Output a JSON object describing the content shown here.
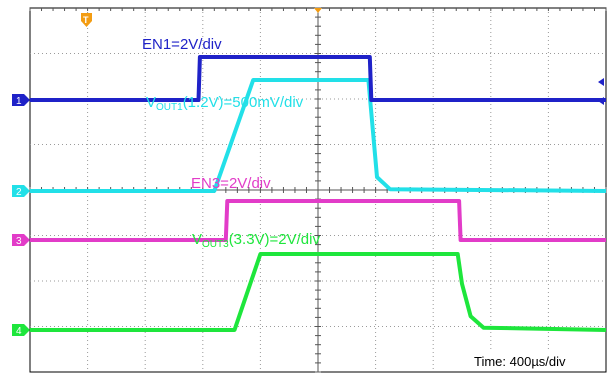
{
  "chart_data": {
    "type": "line",
    "title": "",
    "x_unit": "µs",
    "time_label": "Time: 400µs/div",
    "grid": true,
    "x_divisions": 10,
    "y_divisions": 8,
    "x_range_us": [
      -1200,
      2800
    ],
    "marker_labels": {
      "trigger": "T",
      "ch1": "1",
      "ch2": "2",
      "ch3": "3",
      "ch4": "4"
    },
    "series": [
      {
        "name": "EN1",
        "label": "EN1=2V/div",
        "color": "#1f22c8",
        "x": [
          -1200,
          -30,
          -20,
          1160,
          1170,
          2800
        ],
        "y": [
          0,
          0,
          3.3,
          3.3,
          0,
          0
        ]
      },
      {
        "name": "VOUT1",
        "label_main": "V",
        "label_sub": "OUT1",
        "label_rest": "(1.2V)=500mV/div",
        "color": "#22e0e8",
        "x": [
          -1200,
          80,
          350,
          1150,
          1210,
          1300,
          2800
        ],
        "y": [
          0,
          0,
          1.2,
          1.2,
          0.15,
          0.02,
          0
        ]
      },
      {
        "name": "EN3",
        "label": "EN3=2V/div",
        "color": "#e23cc8",
        "x": [
          -1200,
          160,
          170,
          1780,
          1790,
          2800
        ],
        "y": [
          0,
          0,
          3.3,
          3.3,
          0,
          0
        ]
      },
      {
        "name": "VOUT3",
        "label_main": "V",
        "label_sub": "OUT3",
        "label_rest": "(3.3V)=2V/div",
        "color": "#1ee63c",
        "x": [
          -1200,
          220,
          400,
          1770,
          1800,
          1860,
          1950,
          2800
        ],
        "y": [
          0,
          0,
          3.3,
          3.3,
          2.0,
          0.6,
          0.1,
          0
        ]
      }
    ]
  }
}
